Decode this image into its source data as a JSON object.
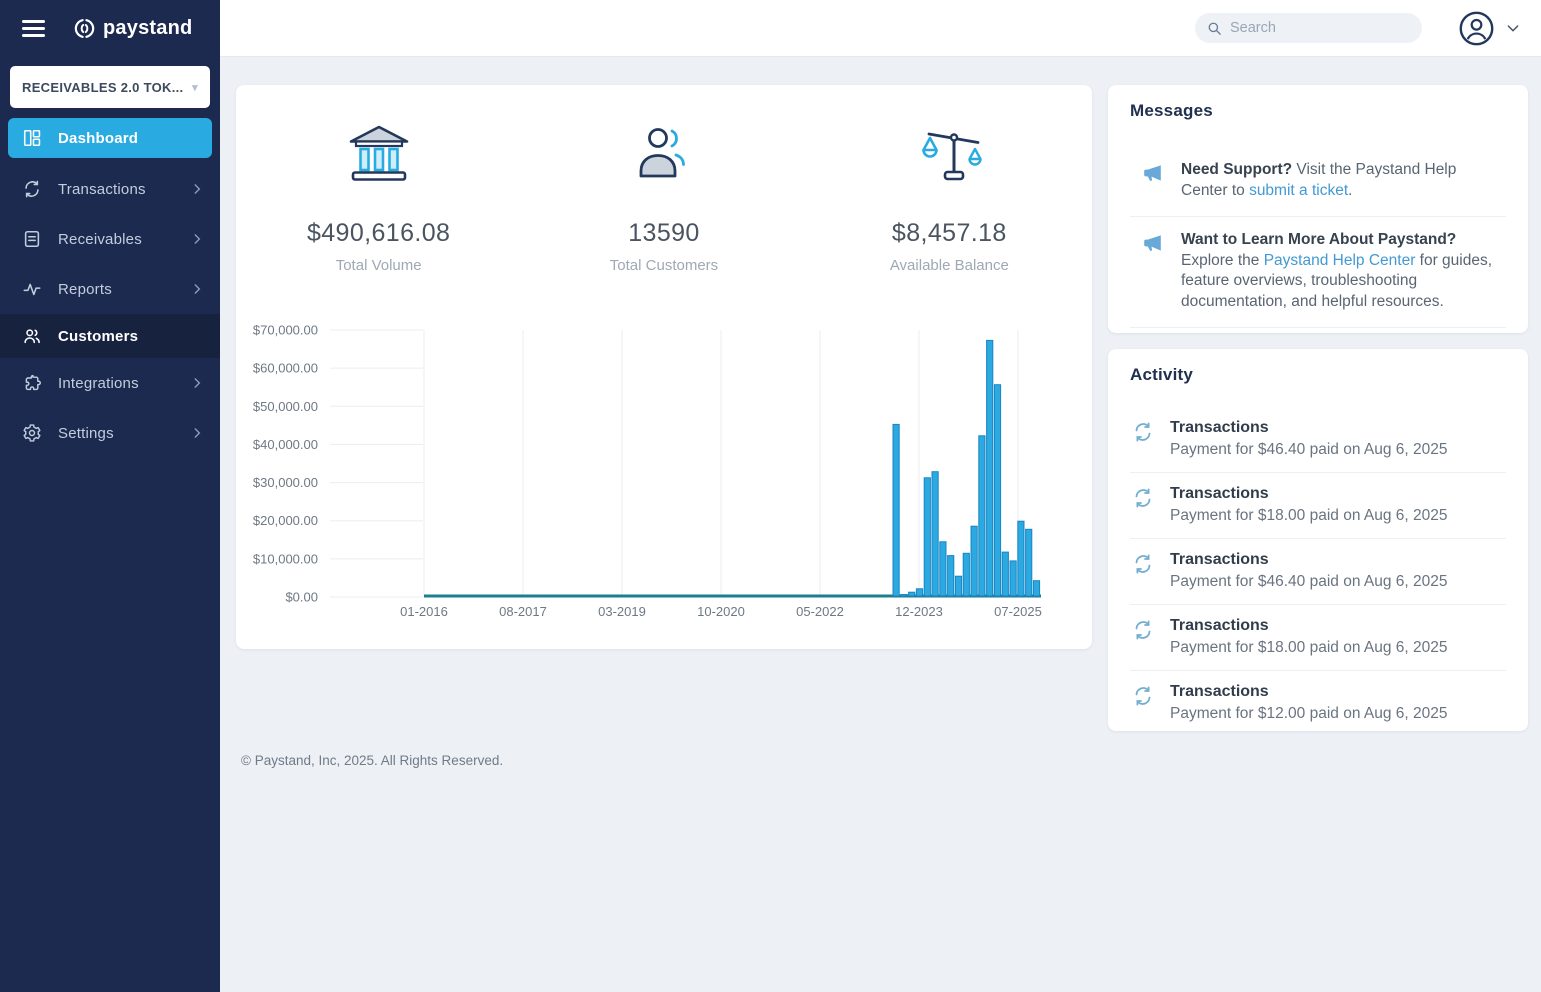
{
  "sidebar": {
    "logo_text": "paystand",
    "workspace": "RECEIVABLES 2.0 TOK...",
    "items": [
      {
        "label": "Dashboard",
        "icon": "dashboard-icon",
        "state": "active",
        "has_submenu": false
      },
      {
        "label": "Transactions",
        "icon": "sync-icon",
        "state": "default",
        "has_submenu": true
      },
      {
        "label": "Receivables",
        "icon": "document-icon",
        "state": "default",
        "has_submenu": true
      },
      {
        "label": "Reports",
        "icon": "pulse-icon",
        "state": "default",
        "has_submenu": true
      },
      {
        "label": "Customers",
        "icon": "people-icon",
        "state": "highlighted",
        "has_submenu": false
      },
      {
        "label": "Integrations",
        "icon": "puzzle-icon",
        "state": "default",
        "has_submenu": true
      },
      {
        "label": "Settings",
        "icon": "gear-icon",
        "state": "default",
        "has_submenu": true
      }
    ]
  },
  "header": {
    "search_placeholder": "Search"
  },
  "stats": [
    {
      "icon": "bank-icon",
      "value": "$490,616.08",
      "label": "Total Volume"
    },
    {
      "icon": "people-icon",
      "value": "13590",
      "label": "Total Customers"
    },
    {
      "icon": "balance-icon",
      "value": "$8,457.18",
      "label": "Available Balance"
    }
  ],
  "chart_data": {
    "type": "bar",
    "title": "",
    "xlabel": "",
    "ylabel": "",
    "ylim": [
      0,
      70000
    ],
    "y_tick_step": 10000,
    "y_ticks": [
      "$0.00",
      "$10,000.00",
      "$20,000.00",
      "$30,000.00",
      "$40,000.00",
      "$50,000.00",
      "$60,000.00",
      "$70,000.00"
    ],
    "x_ticks": [
      "01-2016",
      "08-2017",
      "03-2019",
      "10-2020",
      "05-2022",
      "12-2023",
      "07-2025"
    ],
    "grid": "vertical-gridlines-and-left-tick-stubs",
    "legend": "none",
    "note": "Monthly volume flat at $0 from 01-2016 until mid-2023, then bars through 07-2025",
    "bar_color": "#2ba9e1",
    "bar_stroke": "#1b84c4",
    "zero_line_color": "#1a7f8e",
    "grid_color": "#ebedf1",
    "tick_color": "#6e7884",
    "bars": [
      {
        "x": "2023-07",
        "value": 45000
      },
      {
        "x": "2023-08",
        "value": 400
      },
      {
        "x": "2023-09",
        "value": 1000
      },
      {
        "x": "2023-10",
        "value": 1900
      },
      {
        "x": "2023-11",
        "value": 31000
      },
      {
        "x": "2023-12",
        "value": 32600
      },
      {
        "x": "2024-01",
        "value": 14200
      },
      {
        "x": "2024-02",
        "value": 10600
      },
      {
        "x": "2024-03",
        "value": 5200
      },
      {
        "x": "2024-04",
        "value": 11200
      },
      {
        "x": "2024-05",
        "value": 18300
      },
      {
        "x": "2024-06",
        "value": 42000
      },
      {
        "x": "2024-07",
        "value": 67000
      },
      {
        "x": "2024-08",
        "value": 55400
      },
      {
        "x": "2024-09",
        "value": 11500
      },
      {
        "x": "2024-10",
        "value": 9200
      },
      {
        "x": "2024-11",
        "value": 19600
      },
      {
        "x": "2024-12",
        "value": 17500
      },
      {
        "x": "2025-01",
        "value": 4000
      }
    ]
  },
  "messages": {
    "title": "Messages",
    "items": [
      {
        "bold": "Need Support?",
        "text1": " Visit the Paystand Help Center to ",
        "link": "submit a ticket",
        "text2": "."
      },
      {
        "bold": "Want to Learn More About Paystand?",
        "text1": " Explore the ",
        "link": "Paystand Help Center",
        "text2": " for guides, feature overviews, troubleshooting documentation, and helpful resources."
      }
    ]
  },
  "activity": {
    "title": "Activity",
    "items": [
      {
        "title": "Transactions",
        "subtitle": "Payment for $46.40 paid on Aug 6, 2025"
      },
      {
        "title": "Transactions",
        "subtitle": "Payment for $18.00 paid on Aug 6, 2025"
      },
      {
        "title": "Transactions",
        "subtitle": "Payment for $46.40 paid on Aug 6, 2025"
      },
      {
        "title": "Transactions",
        "subtitle": "Payment for $18.00 paid on Aug 6, 2025"
      },
      {
        "title": "Transactions",
        "subtitle": "Payment for $12.00 paid on Aug 6, 2025"
      }
    ]
  },
  "footer": {
    "copyright": "© Paystand, Inc, 2025. All Rights Reserved."
  },
  "colors": {
    "sidebar_bg": "#1c2a50",
    "sidebar_highlight_row": "#16223e",
    "active_item_bg": "#29abe2",
    "accent_blue": "#29abe2",
    "link_blue": "#4299d3",
    "megaphone_blue": "#68a9d8",
    "refresh_blue": "#74aecf",
    "navy_icon": "#23395b",
    "content_bg": "#edf0f4"
  },
  "icons": {
    "hamburger-icon": "three horizontal bars",
    "paystand-logo-icon": "circular double-bracket mark",
    "search-icon": "magnifier",
    "user-avatar-icon": "person in circle",
    "chevron-down-icon": "▾",
    "chevron-right-icon": "›",
    "bank-icon": "bank building with blue columns",
    "people-icon": "two people outline",
    "balance-icon": "tilted balance scale with blue pans",
    "megaphone-icon": "announcement megaphone",
    "refresh-icon": "circular sync arrows"
  }
}
